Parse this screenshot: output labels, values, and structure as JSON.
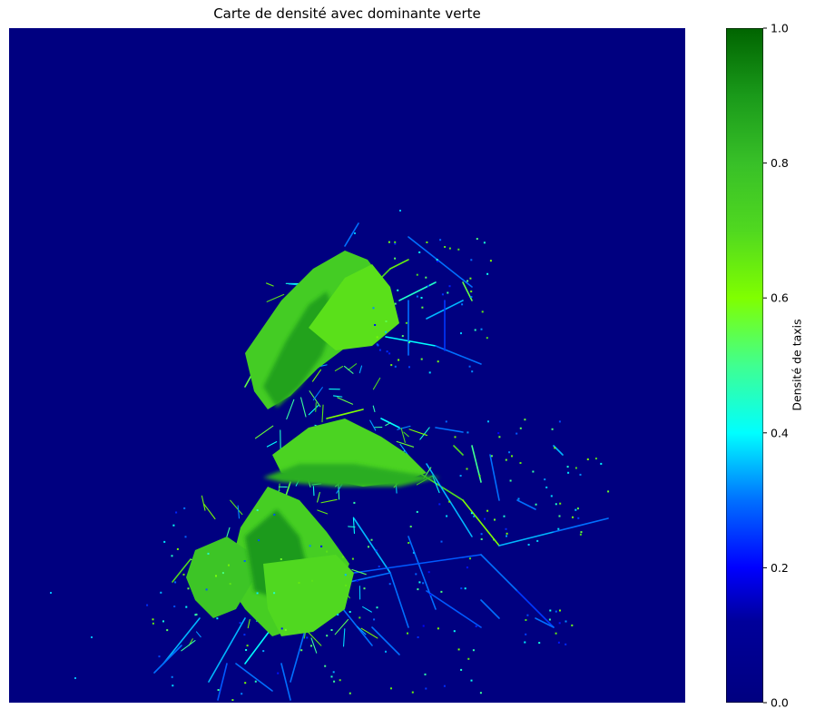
{
  "chart_data": {
    "type": "heatmap",
    "title": "Carte de densité avec dominante verte",
    "xlabel": "",
    "ylabel": "",
    "axes_visible": false,
    "colorbar": {
      "label": "Densité de taxis",
      "range": [
        0,
        1
      ],
      "ticks": [
        0.0,
        0.2,
        0.4,
        0.6,
        0.8,
        1.0
      ],
      "tick_labels": [
        "0.0",
        "0.2",
        "0.4",
        "0.6",
        "0.8",
        "1.0"
      ],
      "colormap_stops": [
        {
          "value": 0.0,
          "color": "#000080"
        },
        {
          "value": 0.12,
          "color": "#00009a"
        },
        {
          "value": 0.2,
          "color": "#0000ff"
        },
        {
          "value": 0.3,
          "color": "#0070ff"
        },
        {
          "value": 0.4,
          "color": "#00ffff"
        },
        {
          "value": 0.5,
          "color": "#40ff90"
        },
        {
          "value": 0.6,
          "color": "#80ff00"
        },
        {
          "value": 0.7,
          "color": "#50d820"
        },
        {
          "value": 0.8,
          "color": "#38c028"
        },
        {
          "value": 0.9,
          "color": "#1a9a1a"
        },
        {
          "value": 1.0,
          "color": "#006400"
        }
      ]
    },
    "background_color": "#000080"
  }
}
